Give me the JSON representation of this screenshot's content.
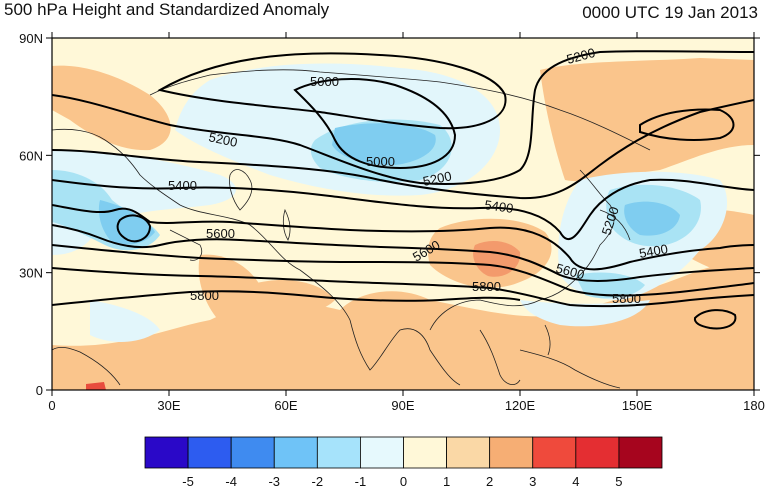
{
  "title_left": "500 hPa Height and Standardized Anomaly",
  "title_right": "0000 UTC 19 Jan 2013",
  "map": {
    "lon_ticks": [
      "0",
      "30E",
      "60E",
      "90E",
      "120E",
      "150E",
      "180"
    ],
    "lat_ticks": [
      "0",
      "30N",
      "60N",
      "90N"
    ],
    "colors": {
      "background": "#fff8d8",
      "pos1": "#ffe8b8",
      "pos2": "#fac58c",
      "pos3": "#f39a6c",
      "pos4": "#e84c3d",
      "neg1": "#e2f6fb",
      "neg2": "#a9e3f4",
      "neg3": "#7fcdf0",
      "neg4": "#4fb0ec",
      "contour": "#000000",
      "coast": "#222222"
    },
    "contour_labels": [
      {
        "text": "5000"
      },
      {
        "text": "5000"
      },
      {
        "text": "5200"
      },
      {
        "text": "5200"
      },
      {
        "text": "5200"
      },
      {
        "text": "5200"
      },
      {
        "text": "5400"
      },
      {
        "text": "5400"
      },
      {
        "text": "5400"
      },
      {
        "text": "5600"
      },
      {
        "text": "5600"
      },
      {
        "text": "5600"
      },
      {
        "text": "5800"
      },
      {
        "text": "5800"
      },
      {
        "text": "5800"
      }
    ]
  },
  "colorbar": {
    "colors": [
      "#2a08c8",
      "#2d5cf0",
      "#3f8bf0",
      "#6fc3f7",
      "#a6e3fb",
      "#e6f9fd",
      "#fff8d8",
      "#fad8a6",
      "#f6ae74",
      "#ef4a3c",
      "#e42e32",
      "#a6051e"
    ],
    "labels": [
      "-5",
      "-4",
      "-3",
      "-2",
      "-1",
      "0",
      "1",
      "2",
      "3",
      "4",
      "5"
    ]
  }
}
